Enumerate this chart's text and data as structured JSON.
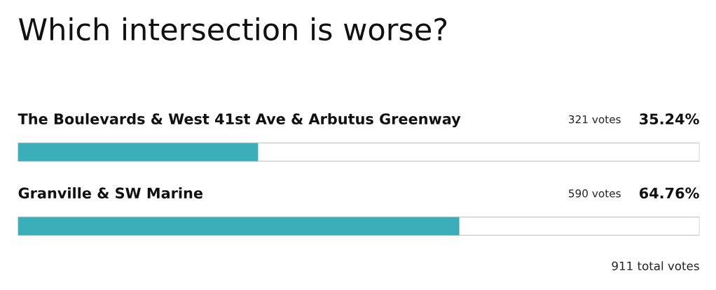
{
  "chart_data": {
    "type": "bar",
    "orientation": "horizontal",
    "title": "Which intersection is worse?",
    "categories": [
      "The Boulevards & West 41st Ave & Arbutus Greenway",
      "Granville & SW Marine"
    ],
    "values": [
      35.24,
      64.76
    ],
    "color": "#3aafb9",
    "xlim": [
      0,
      100
    ],
    "value_labels": [
      "35.24%",
      "64.76%"
    ],
    "annotations": [
      "321 votes",
      "590 votes",
      "911 total votes"
    ]
  }
}
